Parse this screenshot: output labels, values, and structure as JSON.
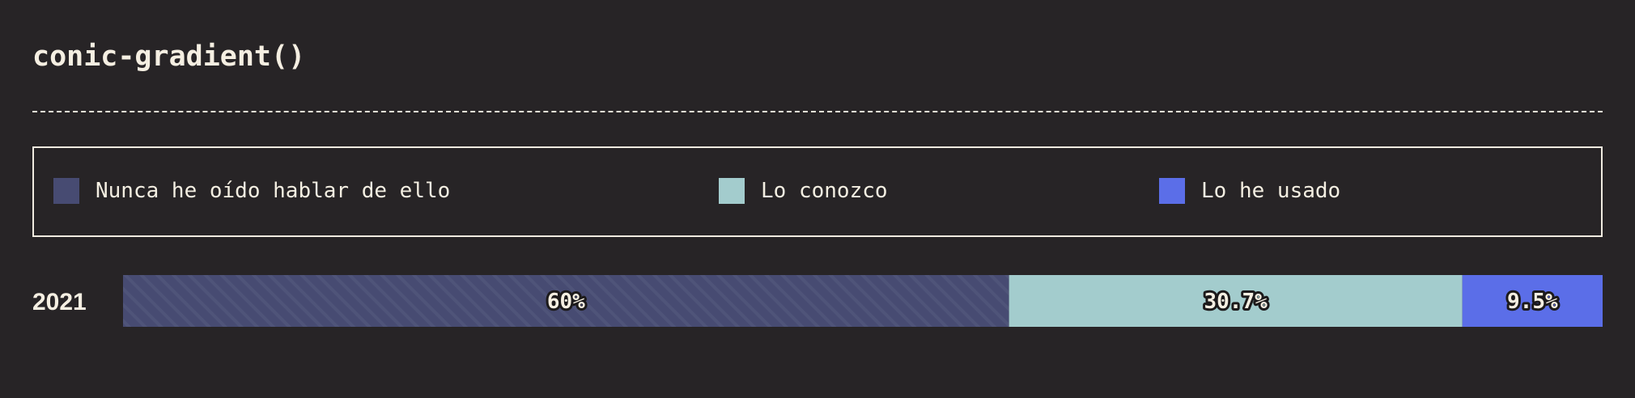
{
  "title": "conic-gradient()",
  "chart_data": {
    "type": "bar",
    "orientation": "horizontal",
    "stacked": true,
    "normalized_percent": true,
    "categories": [
      "2021"
    ],
    "series": [
      {
        "name": "Nunca he oído hablar de ello",
        "values": [
          60
        ],
        "label": "60%",
        "color": "#474b72",
        "pattern": "diagonal-stripes"
      },
      {
        "name": "Lo conozco",
        "values": [
          30.7
        ],
        "label": "30.7%",
        "color": "#a3cccd"
      },
      {
        "name": "Lo he usado",
        "values": [
          9.5
        ],
        "label": "9.5%",
        "color": "#5b6ee8"
      }
    ],
    "legend_position": "top",
    "grid": false
  }
}
